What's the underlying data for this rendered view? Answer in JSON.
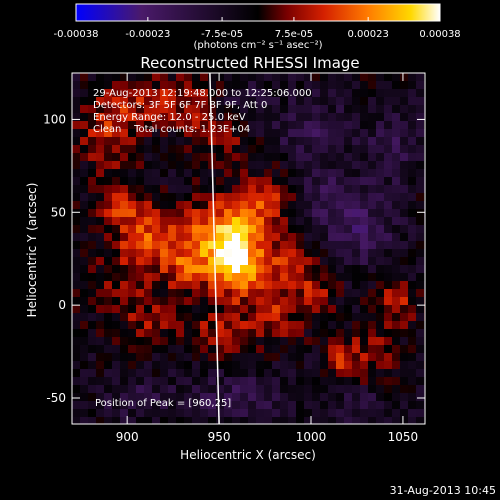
{
  "colorbar": {
    "tick_labels": [
      "-0.00038",
      "-0.00023",
      "-7.5e-05",
      "7.5e-05",
      "0.00023",
      "0.00038"
    ],
    "tick_values": [
      -0.00038,
      -0.00023,
      -7.5e-05,
      7.5e-05,
      0.00023,
      0.00038
    ],
    "range": [
      -0.00038,
      0.00038
    ],
    "unit_label": "(photons cm⁻² s⁻¹ asec⁻²)",
    "colors": [
      "#0000ff",
      "#4a1a6a",
      "#000000",
      "#7a0000",
      "#d42000",
      "#ff7a00",
      "#ffd800",
      "#ffffff"
    ]
  },
  "chart_data": {
    "type": "heatmap",
    "title": "Reconstructed RHESSI Image",
    "xlabel": "Heliocentric X (arcsec)",
    "ylabel": "Heliocentric Y (arcsec)",
    "xlim": [
      870,
      1062
    ],
    "ylim": [
      -64,
      125
    ],
    "x_ticks": [
      900,
      950,
      1000,
      1050
    ],
    "y_ticks": [
      -50,
      0,
      50,
      100
    ],
    "x_tick_labels": [
      "900",
      "950",
      "1000",
      "1050"
    ],
    "y_tick_labels": [
      "-50",
      "0",
      "50",
      "100"
    ],
    "annotations": [
      "29-Aug-2013 12:19:48.000 to 12:25:06.000",
      "Detectors: 3F 5F 6F 7F 8F 9F, Att 0",
      "Energy Range: 12.0 - 25.0 keV",
      "Clean    Total counts: 1.23E+04"
    ],
    "peak_label": "Position of Peak = [960,25]",
    "peak_position": [
      960,
      25
    ],
    "limb_line": [
      [
        945,
        125
      ],
      [
        950,
        -64
      ]
    ],
    "blobs": [
      {
        "x": 960,
        "y": 25,
        "sx": 9,
        "sy": 14,
        "v": 0.0004
      },
      {
        "x": 948,
        "y": 40,
        "sx": 11,
        "sy": 12,
        "v": 0.00022
      },
      {
        "x": 975,
        "y": 55,
        "sx": 10,
        "sy": 10,
        "v": 0.0002
      },
      {
        "x": 935,
        "y": 20,
        "sx": 9,
        "sy": 10,
        "v": 0.00018
      },
      {
        "x": 912,
        "y": 35,
        "sx": 14,
        "sy": 11,
        "v": 0.00022
      },
      {
        "x": 898,
        "y": 55,
        "sx": 9,
        "sy": 8,
        "v": 0.00016
      },
      {
        "x": 890,
        "y": 95,
        "sx": 11,
        "sy": 14,
        "v": 0.00017
      },
      {
        "x": 915,
        "y": 110,
        "sx": 12,
        "sy": 8,
        "v": 0.00015
      },
      {
        "x": 938,
        "y": 105,
        "sx": 8,
        "sy": 10,
        "v": 0.00013
      },
      {
        "x": 985,
        "y": 22,
        "sx": 9,
        "sy": 10,
        "v": 0.00017
      },
      {
        "x": 980,
        "y": -5,
        "sx": 11,
        "sy": 9,
        "v": 0.00014
      },
      {
        "x": 950,
        "y": -15,
        "sx": 12,
        "sy": 8,
        "v": 0.00013
      },
      {
        "x": 912,
        "y": -10,
        "sx": 12,
        "sy": 8,
        "v": 0.0001
      },
      {
        "x": 1003,
        "y": 10,
        "sx": 8,
        "sy": 10,
        "v": 0.00012
      },
      {
        "x": 1018,
        "y": -30,
        "sx": 7,
        "sy": 9,
        "v": 0.00016
      },
      {
        "x": 1045,
        "y": 0,
        "sx": 8,
        "sy": 8,
        "v": 0.00016
      },
      {
        "x": 1035,
        "y": -25,
        "sx": 7,
        "sy": 9,
        "v": 0.00011
      },
      {
        "x": 900,
        "y": 10,
        "sx": 14,
        "sy": 10,
        "v": 0.0001
      },
      {
        "x": 955,
        "y": 85,
        "sx": 10,
        "sy": 10,
        "v": 8e-05
      },
      {
        "x": 1010,
        "y": 55,
        "sx": 12,
        "sy": 14,
        "v": -0.00012
      },
      {
        "x": 1030,
        "y": 40,
        "sx": 12,
        "sy": 14,
        "v": -0.00013
      },
      {
        "x": 1000,
        "y": 95,
        "sx": 14,
        "sy": 12,
        "v": -0.00012
      },
      {
        "x": 1045,
        "y": 85,
        "sx": 12,
        "sy": 14,
        "v": -0.00011
      },
      {
        "x": 960,
        "y": -50,
        "sx": 20,
        "sy": 9,
        "v": -0.00012
      },
      {
        "x": 905,
        "y": -50,
        "sx": 14,
        "sy": 8,
        "v": -0.0001
      },
      {
        "x": 1025,
        "y": -55,
        "sx": 14,
        "sy": 8,
        "v": -8e-05
      },
      {
        "x": 965,
        "y": 110,
        "sx": 10,
        "sy": 8,
        "v": -6e-05
      }
    ]
  },
  "footer": {
    "timestamp": "31-Aug-2013 10:45"
  }
}
